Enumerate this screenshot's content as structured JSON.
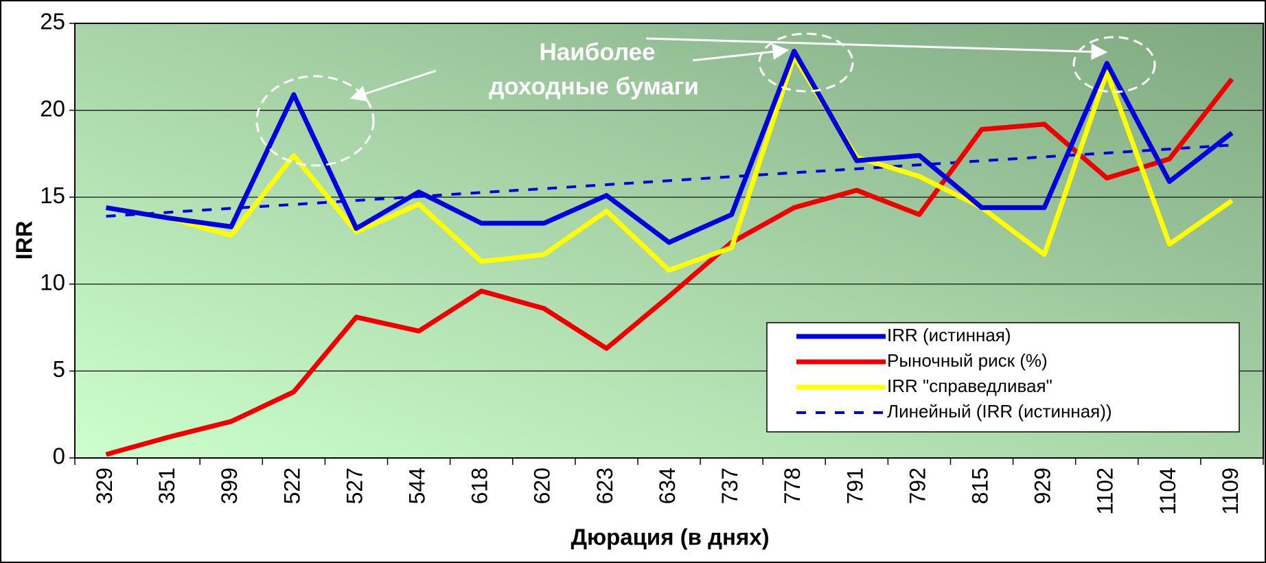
{
  "chart_data": {
    "type": "line",
    "x_label": "Дюрация (в днях)",
    "y_label": "IRR",
    "annotation": [
      "Наиболее",
      "доходные бумаги"
    ],
    "categories": [
      "329",
      "351",
      "399",
      "522",
      "527",
      "544",
      "618",
      "620",
      "623",
      "634",
      "737",
      "778",
      "791",
      "792",
      "815",
      "929",
      "1102",
      "1104",
      "1109"
    ],
    "series": [
      {
        "name": "IRR (истинная)",
        "color": "#0000dd",
        "style": "solid",
        "values": [
          14.4,
          13.8,
          13.3,
          20.9,
          13.2,
          15.3,
          13.5,
          13.5,
          15.1,
          12.4,
          14.0,
          23.4,
          17.1,
          17.4,
          14.4,
          14.4,
          22.7,
          15.9,
          18.7
        ]
      },
      {
        "name": "Рыночный риск (%)",
        "color": "#ee0000",
        "style": "solid",
        "values": [
          0.2,
          1.2,
          2.1,
          3.8,
          8.1,
          7.3,
          9.6,
          8.6,
          6.3,
          9.3,
          12.4,
          14.4,
          15.4,
          14.0,
          18.9,
          19.2,
          16.1,
          17.2,
          21.8
        ]
      },
      {
        "name": "IRR \"справедливая\"",
        "color": "#ffff00",
        "style": "solid",
        "values": [
          14.4,
          13.8,
          12.8,
          17.4,
          13.0,
          14.6,
          11.3,
          11.7,
          14.2,
          10.8,
          12.1,
          23.1,
          17.3,
          16.2,
          14.4,
          11.7,
          22.2,
          12.3,
          14.8
        ]
      },
      {
        "name": "Линейный (IRR (истинная))",
        "color": "#0000dd",
        "style": "dashed",
        "values": [
          13.9,
          14.13,
          14.36,
          14.58,
          14.81,
          15.04,
          15.27,
          15.49,
          15.72,
          15.95,
          16.18,
          16.41,
          16.63,
          16.86,
          17.09,
          17.32,
          17.54,
          17.77,
          18.0
        ]
      }
    ],
    "ylim": [
      0,
      25
    ],
    "yticks": [
      0,
      5,
      10,
      15,
      20,
      25
    ],
    "grid": true
  }
}
